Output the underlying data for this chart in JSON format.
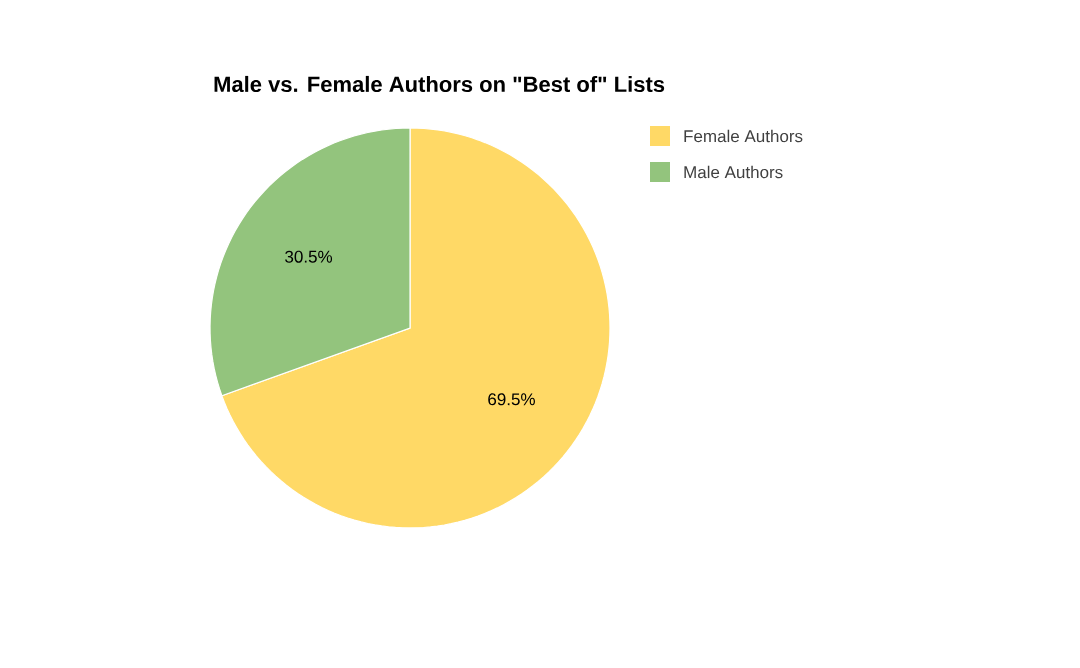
{
  "chart_data": {
    "type": "pie",
    "title": "Male vs. Female Authors on \"Best of\" Lists",
    "categories": [
      "Female Authors",
      "Male Authors"
    ],
    "values": [
      69.5,
      30.5
    ],
    "colors": [
      "#ffd966",
      "#93c47d"
    ],
    "value_labels": [
      "69.5%",
      "30.5%"
    ],
    "legend": "top right"
  }
}
